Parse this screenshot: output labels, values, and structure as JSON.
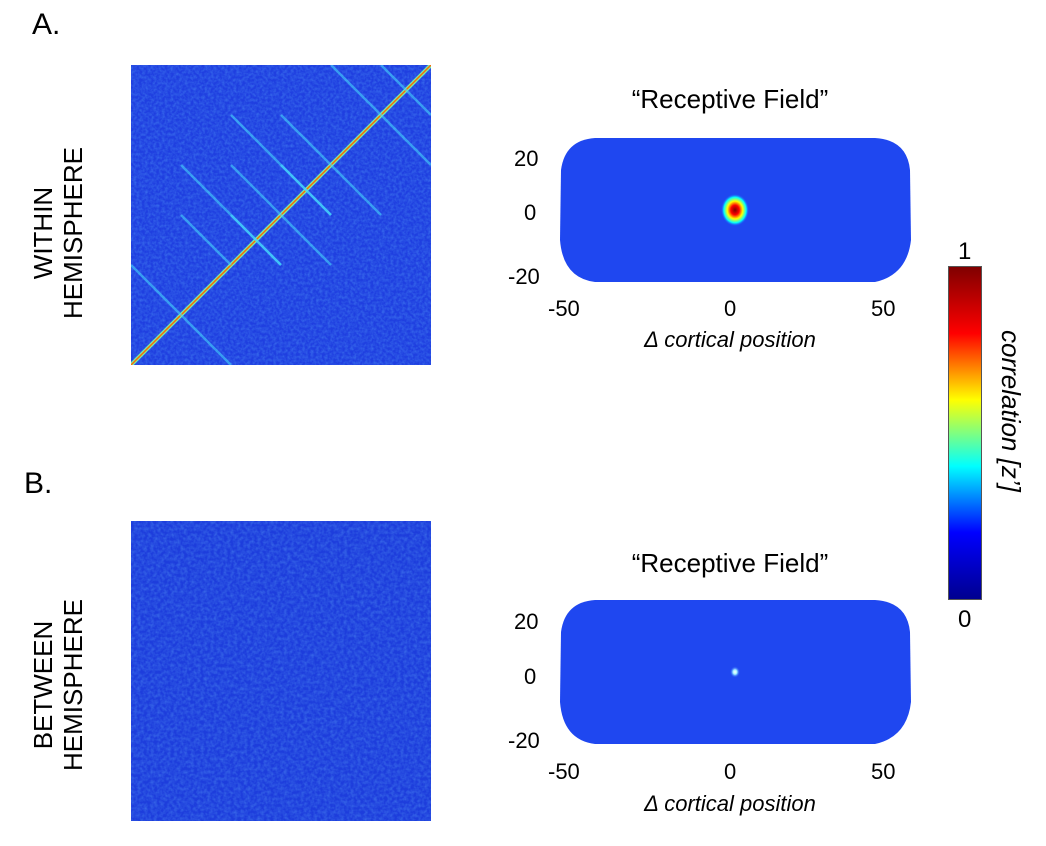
{
  "panels": [
    {
      "letter": "A.",
      "row_label": [
        "WITHIN",
        "HEMISPHERE"
      ],
      "rf_title": "“Receptive Field”",
      "xlabel": "Δ cortical position",
      "xticks": [
        "-50",
        "0",
        "50"
      ],
      "yticks": [
        "20",
        "0",
        "-20"
      ]
    },
    {
      "letter": "B.",
      "row_label": [
        "BETWEEN",
        "HEMISPHERE"
      ],
      "rf_title": "“Receptive Field”",
      "xlabel": "Δ cortical position",
      "xticks": [
        "-50",
        "0",
        "50"
      ],
      "yticks": [
        "20",
        "0",
        "-20"
      ]
    }
  ],
  "colorbar": {
    "label": "correlation [z’]",
    "max_label": "1",
    "min_label": "0",
    "colormap": "jet",
    "colors": [
      "#00008f",
      "#0000ff",
      "#00ffff",
      "#ffff00",
      "#ff0000",
      "#800000"
    ]
  },
  "chart_data": [
    {
      "type": "heatmap",
      "name": "within-hemisphere correlation matrix",
      "background_value": 0.2,
      "diagonal_value": 0.6
    },
    {
      "type": "heatmap",
      "name": "within-hemisphere receptive field",
      "xlim": [
        -50,
        50
      ],
      "ylim": [
        -25,
        25
      ],
      "xticks": [
        -50,
        0,
        50
      ],
      "yticks": [
        -20,
        0,
        20
      ],
      "peak": {
        "x": 0,
        "y": 0,
        "value": 1
      },
      "background_value": 0.2
    },
    {
      "type": "heatmap",
      "name": "between-hemisphere correlation matrix",
      "background_value": 0.2
    },
    {
      "type": "heatmap",
      "name": "between-hemisphere receptive field",
      "xlim": [
        -50,
        50
      ],
      "ylim": [
        -25,
        25
      ],
      "xticks": [
        -50,
        0,
        50
      ],
      "yticks": [
        -20,
        0,
        20
      ],
      "peak": {
        "x": 0,
        "y": 0,
        "value": 0.4
      },
      "background_value": 0.2
    }
  ]
}
